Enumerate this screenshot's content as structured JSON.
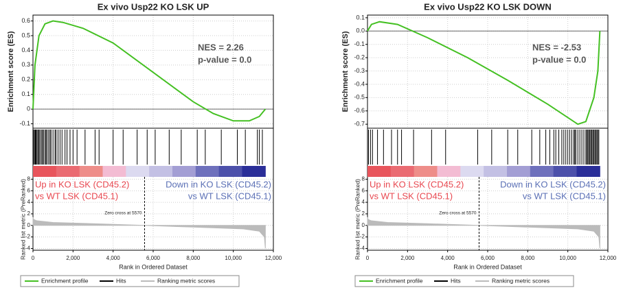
{
  "chart_data": [
    {
      "type": "gsea",
      "title": "Ex vivo Usp22 KO LSK UP",
      "ylabel": "Enrichment score (ES)",
      "y2label": "Ranked list metric (PreRanked)",
      "xlabel": "Rank in Ordered Dataset",
      "nes_text": "NES = 2.26",
      "pvalue_text": "p-value = 0.0",
      "up_label": [
        "Up in KO LSK (CD45.2)",
        "vs WT LSK (CD45.1)"
      ],
      "down_label": [
        "Down in KO LSK (CD45.2)",
        "vs WT LSK (CD45.1)"
      ],
      "zero_cross": 5570,
      "zero_cross_label": "Zero cross at 5570",
      "heatmap_colors": [
        "#e8555c",
        "#ea6b72",
        "#ee8d89",
        "#f3bcd3",
        "#dcdaf0",
        "#c3c0e4",
        "#a39ed4",
        "#6e70bc",
        "#4c50aa",
        "#2a2e98"
      ],
      "xlim": [
        0,
        12000
      ],
      "xticks": [
        0,
        {
          "value": 2000,
          "label": "2,000"
        },
        {
          "value": 4000,
          "label": "4,000"
        },
        {
          "value": 6000,
          "label": "6,000"
        },
        {
          "value": 8000,
          "label": "8,000"
        },
        {
          "value": 10000,
          "label": "10,000"
        },
        {
          "value": 12000,
          "label": "12,000"
        }
      ],
      "ylim": [
        -0.13,
        0.64
      ],
      "yticks": [
        0.6,
        0.5,
        0.4,
        0.3,
        0.2,
        0.1,
        0,
        -0.1
      ],
      "y2lim": [
        -4.3,
        8.4
      ],
      "y2ticks": [
        8,
        6,
        4,
        2,
        0,
        -2,
        -4
      ],
      "grid": true,
      "series": [
        {
          "name": "Enrichment profile",
          "color": "#44c022",
          "x": [
            0,
            100,
            300,
            600,
            1000,
            1500,
            2500,
            4000,
            6000,
            8000,
            9000,
            10000,
            10800,
            11300,
            11600
          ],
          "values": [
            0,
            0.3,
            0.5,
            0.58,
            0.6,
            0.59,
            0.55,
            0.45,
            0.25,
            0.05,
            -0.03,
            -0.08,
            -0.08,
            -0.05,
            0.0
          ]
        },
        {
          "name": "Hits",
          "color": "#000000",
          "x": [
            30,
            80,
            120,
            150,
            200,
            250,
            300,
            350,
            420,
            480,
            520,
            600,
            650,
            700,
            780,
            850,
            900,
            1000,
            1100,
            1150,
            1250,
            1350,
            1450,
            1600,
            1700,
            1850,
            2000,
            2200,
            2600,
            3100,
            3300,
            4000,
            4500,
            5200,
            5700,
            6100,
            6800,
            7400,
            8200,
            8600,
            9400,
            10200,
            10600,
            11200,
            11300,
            11450
          ]
        },
        {
          "name": "Ranking metric scores",
          "color": "#bbbbbb",
          "axis": "y2",
          "x": [
            0,
            50,
            200,
            1000,
            3000,
            5570,
            8000,
            10500,
            11300,
            11550,
            11600
          ],
          "values": [
            1.3,
            1.0,
            0.8,
            0.5,
            0.3,
            0,
            -0.3,
            -0.6,
            -1.0,
            -2,
            -4
          ]
        }
      ]
    },
    {
      "type": "gsea",
      "title": "Ex vivo Usp22 KO LSK DOWN",
      "ylabel": "Enrichment score (ES)",
      "y2label": "Ranked list metric (PreRanked)",
      "xlabel": "Rank in Ordered Dataset",
      "nes_text": "NES = -2.53",
      "pvalue_text": "p-value = 0.0",
      "up_label": [
        "Up in KO LSK (CD45.2)",
        "vs WT LSK (CD45.1)"
      ],
      "down_label": [
        "Down in KO LSK (CD45.2)",
        "vs WT LSK (CD45.1)"
      ],
      "zero_cross": 5570,
      "zero_cross_label": "Zero cross at 5570",
      "heatmap_colors": [
        "#e8555c",
        "#ea6b72",
        "#ee8d89",
        "#f3bcd3",
        "#dcdaf0",
        "#c3c0e4",
        "#a39ed4",
        "#6e70bc",
        "#4c50aa",
        "#2a2e98"
      ],
      "xlim": [
        0,
        12000
      ],
      "xticks": [
        0,
        {
          "value": 2000,
          "label": "2,000"
        },
        {
          "value": 4000,
          "label": "4,000"
        },
        {
          "value": 6000,
          "label": "6,000"
        },
        {
          "value": 8000,
          "label": "8,000"
        },
        {
          "value": 10000,
          "label": "10,000"
        },
        {
          "value": 12000,
          "label": "12,000"
        }
      ],
      "ylim": [
        -0.73,
        0.12
      ],
      "yticks": [
        0.1,
        {
          "value": 0,
          "label": "0.0"
        },
        -0.1,
        -0.2,
        -0.3,
        -0.4,
        -0.5,
        -0.6,
        -0.7
      ],
      "y2lim": [
        -4.3,
        8.4
      ],
      "y2ticks": [
        8,
        6,
        4,
        2,
        0,
        -2,
        -4
      ],
      "grid": true,
      "series": [
        {
          "name": "Enrichment profile",
          "color": "#44c022",
          "x": [
            0,
            200,
            600,
            1500,
            3000,
            5000,
            7000,
            9000,
            10500,
            10900,
            11300,
            11500,
            11600
          ],
          "values": [
            0,
            0.05,
            0.07,
            0.05,
            -0.05,
            -0.2,
            -0.37,
            -0.55,
            -0.7,
            -0.68,
            -0.5,
            -0.3,
            0
          ]
        },
        {
          "name": "Hits",
          "color": "#000000",
          "x": [
            50,
            150,
            250,
            500,
            800,
            1200,
            1500,
            1700,
            2300,
            3200,
            3900,
            5500,
            6200,
            7000,
            7500,
            8200,
            8600,
            8900,
            9100,
            9300,
            9400,
            9550,
            9700,
            9800,
            9900,
            10000,
            10100,
            10200,
            10300,
            10350,
            10400,
            10500,
            10600,
            10700,
            10800,
            10900,
            10950,
            11000,
            11050,
            11100,
            11150,
            11200,
            11250,
            11300,
            11350,
            11400,
            11450,
            11500,
            11550
          ]
        },
        {
          "name": "Ranking metric scores",
          "color": "#bbbbbb",
          "axis": "y2",
          "x": [
            0,
            50,
            200,
            1000,
            3000,
            5570,
            8000,
            10500,
            11300,
            11550,
            11600
          ],
          "values": [
            1.3,
            1.0,
            0.8,
            0.5,
            0.3,
            0,
            -0.3,
            -0.6,
            -1.0,
            -2,
            -4
          ]
        }
      ]
    }
  ]
}
